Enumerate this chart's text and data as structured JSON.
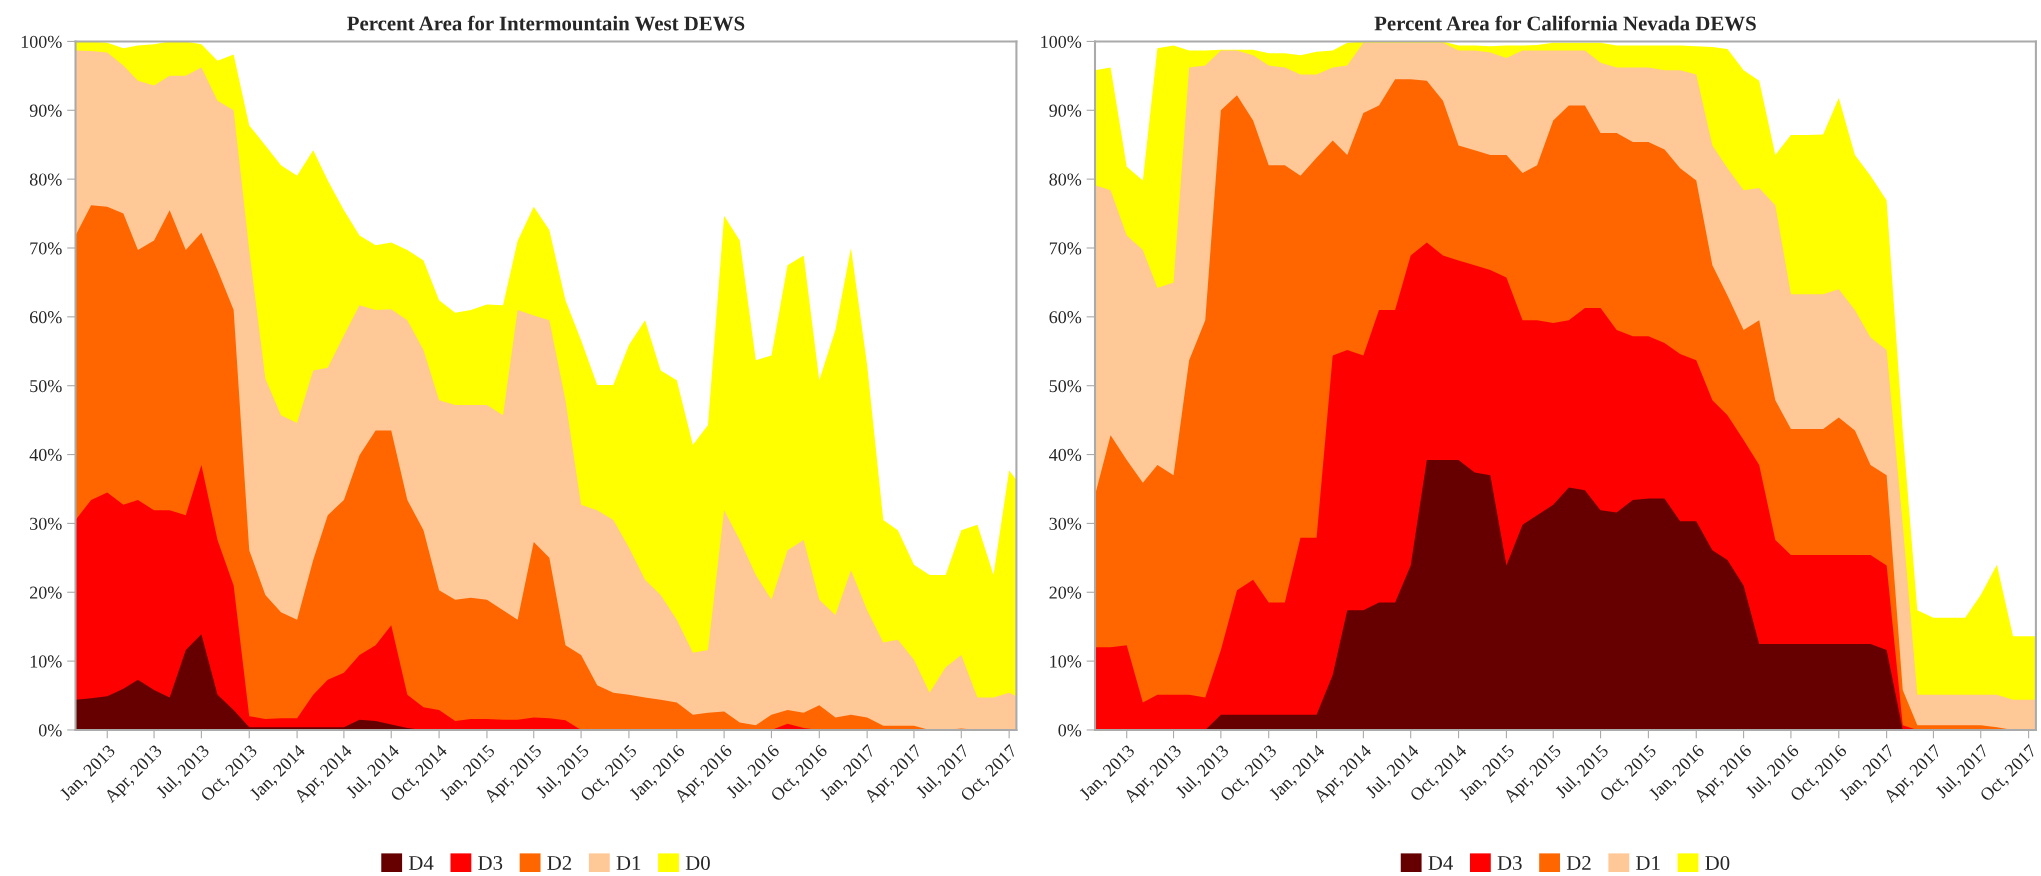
{
  "chart_data": [
    {
      "type": "area",
      "title": "Percent Area for Intermountain West DEWS",
      "x": [
        "2012-11",
        "2012-12",
        "2013-01",
        "2013-02",
        "2013-03",
        "2013-04",
        "2013-05",
        "2013-06",
        "2013-07",
        "2013-08",
        "2013-09",
        "2013-10",
        "2013-11",
        "2013-12",
        "2014-01",
        "2014-02",
        "2014-03",
        "2014-04",
        "2014-05",
        "2014-06",
        "2014-07",
        "2014-08",
        "2014-09",
        "2014-10",
        "2014-11",
        "2014-12",
        "2015-01",
        "2015-02",
        "2015-03",
        "2015-04",
        "2015-05",
        "2015-06",
        "2015-07",
        "2015-08",
        "2015-09",
        "2015-10",
        "2015-11",
        "2015-12",
        "2016-01",
        "2016-02",
        "2016-03",
        "2016-04",
        "2016-05",
        "2016-06",
        "2016-07",
        "2016-08",
        "2016-09",
        "2016-10",
        "2016-11",
        "2016-12",
        "2017-01",
        "2017-02",
        "2017-03",
        "2017-04",
        "2017-05",
        "2017-06",
        "2017-07",
        "2017-08",
        "2017-09",
        "2017-10",
        "2017-10-15"
      ],
      "series": [
        {
          "name": "D4",
          "color": "#660000",
          "values": [
            4.4,
            4.6,
            4.9,
            6,
            7.3,
            5.8,
            4.7,
            11.6,
            13.9,
            5.1,
            2.9,
            0.4,
            0.4,
            0.4,
            0.4,
            0.4,
            0.4,
            0.4,
            1.5,
            1.3,
            0.8,
            0.3,
            0,
            0,
            0,
            0,
            0,
            0,
            0,
            0,
            0,
            0,
            0,
            0,
            0,
            0,
            0,
            0,
            0,
            0,
            0,
            0,
            0,
            0,
            0,
            0,
            0,
            0,
            0,
            0,
            0,
            0,
            0,
            0,
            0,
            0,
            0,
            0,
            0,
            0,
            0
          ]
        },
        {
          "name": "D3",
          "color": "#ff0000",
          "values": [
            30.5,
            33.4,
            34.5,
            32.7,
            33.4,
            31.9,
            31.9,
            31.2,
            38.5,
            27.6,
            21,
            2,
            1.6,
            1.7,
            1.7,
            5.1,
            7.3,
            8.3,
            10.9,
            12.3,
            15.2,
            5.1,
            3.3,
            2.9,
            1.3,
            1.6,
            1.6,
            1.5,
            1.5,
            1.8,
            1.7,
            1.4,
            0,
            0,
            0,
            0,
            0,
            0,
            0,
            0,
            0,
            0,
            0,
            0,
            0,
            0.9,
            0.3,
            0,
            0,
            0,
            0,
            0,
            0,
            0,
            0,
            0,
            0,
            0,
            0,
            0,
            0
          ]
        },
        {
          "name": "D2",
          "color": "#ff6600",
          "values": [
            71.8,
            76.2,
            76,
            75,
            69.7,
            71.1,
            75.5,
            69.7,
            72.2,
            66.8,
            61,
            26.1,
            19.6,
            17.1,
            16,
            24.7,
            31.2,
            33.4,
            39.9,
            43.5,
            43.5,
            33.4,
            29,
            20.3,
            18.9,
            19.2,
            18.9,
            17.4,
            16,
            27.3,
            25,
            12.3,
            10.9,
            6.5,
            5.4,
            5.1,
            4.7,
            4.4,
            4,
            2.2,
            2.5,
            2.7,
            1.1,
            0.7,
            2.2,
            2.9,
            2.5,
            3.6,
            1.8,
            2.2,
            1.8,
            0.6,
            0.6,
            0.6,
            0,
            0,
            0.2,
            0,
            0,
            0,
            0
          ]
        },
        {
          "name": "D1",
          "color": "#ffc896",
          "values": [
            98.7,
            98.6,
            98.4,
            96.5,
            94.3,
            93.6,
            95,
            95,
            96.2,
            91.4,
            90,
            69.7,
            51,
            45.7,
            44.6,
            52.2,
            52.6,
            57.3,
            61.7,
            61,
            61.1,
            59.5,
            55.2,
            47.9,
            47.2,
            47.2,
            47.2,
            45.7,
            61,
            60.2,
            59.5,
            47.9,
            32.7,
            31.9,
            30.5,
            26.5,
            21.8,
            19.6,
            16,
            11.2,
            11.6,
            31.9,
            27.6,
            22.5,
            18.9,
            26.1,
            27.6,
            18.9,
            16.7,
            23.2,
            17.4,
            12.7,
            13.1,
            10.2,
            5.4,
            9.1,
            10.9,
            4.7,
            4.7,
            5.4,
            4.9
          ]
        },
        {
          "name": "D0",
          "color": "#ffff00",
          "values": [
            100,
            100,
            99.8,
            99,
            99.4,
            99.6,
            100,
            100,
            99.6,
            97.2,
            98.1,
            87.8,
            84.9,
            82,
            80.5,
            84.2,
            79.8,
            75.5,
            71.8,
            70.4,
            70.8,
            69.7,
            68.2,
            62.4,
            60.6,
            61,
            61.8,
            61.7,
            71,
            76,
            72.6,
            62.4,
            56.6,
            50.1,
            50.1,
            55.9,
            59.5,
            52.2,
            50.8,
            41.4,
            44.3,
            74.7,
            71.1,
            53.7,
            54.4,
            67.5,
            68.9,
            50.8,
            58.1,
            70,
            53,
            30.5,
            29,
            24,
            22.5,
            22.5,
            29,
            29.8,
            22.5,
            37.7,
            36.3
          ]
        }
      ],
      "xlim": [
        "2012-11-01",
        "2017-10-15"
      ],
      "xticks": [
        {
          "value": "2013-01-01",
          "label": "Jan, 2013"
        },
        {
          "value": "2013-04-01",
          "label": "Apr, 2013"
        },
        {
          "value": "2013-07-01",
          "label": "Jul, 2013"
        },
        {
          "value": "2013-10-01",
          "label": "Oct, 2013"
        },
        {
          "value": "2014-01-01",
          "label": "Jan, 2014"
        },
        {
          "value": "2014-04-01",
          "label": "Apr, 2014"
        },
        {
          "value": "2014-07-01",
          "label": "Jul, 2014"
        },
        {
          "value": "2014-10-01",
          "label": "Oct, 2014"
        },
        {
          "value": "2015-01-01",
          "label": "Jan, 2015"
        },
        {
          "value": "2015-04-01",
          "label": "Apr, 2015"
        },
        {
          "value": "2015-07-01",
          "label": "Jul, 2015"
        },
        {
          "value": "2015-10-01",
          "label": "Oct, 2015"
        },
        {
          "value": "2016-01-01",
          "label": "Jan, 2016"
        },
        {
          "value": "2016-04-01",
          "label": "Apr, 2016"
        },
        {
          "value": "2016-07-01",
          "label": "Jul, 2016"
        },
        {
          "value": "2016-10-01",
          "label": "Oct, 2016"
        },
        {
          "value": "2017-01-01",
          "label": "Jan, 2017"
        },
        {
          "value": "2017-04-01",
          "label": "Apr, 2017"
        },
        {
          "value": "2017-07-01",
          "label": "Jul, 2017"
        },
        {
          "value": "2017-10-01",
          "label": "Oct, 2017"
        }
      ],
      "ylim": [
        0,
        100
      ],
      "yticks": [
        {
          "value": 0,
          "label": "0%"
        },
        {
          "value": 10,
          "label": "10%"
        },
        {
          "value": 20,
          "label": "20%"
        },
        {
          "value": 30,
          "label": "30%"
        },
        {
          "value": 40,
          "label": "40%"
        },
        {
          "value": 50,
          "label": "50%"
        },
        {
          "value": 60,
          "label": "60%"
        },
        {
          "value": 70,
          "label": "70%"
        },
        {
          "value": 80,
          "label": "80%"
        },
        {
          "value": 90,
          "label": "90%"
        },
        {
          "value": 100,
          "label": "100%"
        }
      ],
      "legend": "bottom"
    },
    {
      "type": "area",
      "title": "Percent Area for California Nevada DEWS",
      "x": [
        "2012-11",
        "2012-12",
        "2013-01",
        "2013-02",
        "2013-03",
        "2013-04",
        "2013-05",
        "2013-06",
        "2013-07",
        "2013-08",
        "2013-09",
        "2013-10",
        "2013-11",
        "2013-12",
        "2014-01",
        "2014-02",
        "2014-03",
        "2014-04",
        "2014-05",
        "2014-06",
        "2014-07",
        "2014-08",
        "2014-09",
        "2014-10",
        "2014-11",
        "2014-12",
        "2015-01",
        "2015-02",
        "2015-03",
        "2015-04",
        "2015-05",
        "2015-06",
        "2015-07",
        "2015-08",
        "2015-09",
        "2015-10",
        "2015-11",
        "2015-12",
        "2016-01",
        "2016-02",
        "2016-03",
        "2016-04",
        "2016-05",
        "2016-06",
        "2016-07",
        "2016-08",
        "2016-09",
        "2016-10",
        "2016-11",
        "2016-12",
        "2017-01",
        "2017-02",
        "2017-03",
        "2017-04",
        "2017-05",
        "2017-06",
        "2017-07",
        "2017-08",
        "2017-09",
        "2017-10",
        "2017-10-15"
      ],
      "series": [
        {
          "name": "D4",
          "color": "#660000",
          "values": [
            0,
            0,
            0,
            0,
            0,
            0,
            0,
            0,
            2.2,
            2.2,
            2.2,
            2.2,
            2.2,
            2.2,
            2.2,
            8,
            17.4,
            17.4,
            18.5,
            18.5,
            23.9,
            39.2,
            39.2,
            39.2,
            37.4,
            37,
            23.9,
            29.8,
            31.2,
            32.7,
            35.2,
            34.8,
            31.9,
            31.6,
            33.4,
            33.6,
            33.6,
            30.3,
            30.3,
            26.1,
            24.7,
            21,
            12.5,
            12.5,
            12.5,
            12.5,
            12.5,
            12.5,
            12.5,
            12.5,
            11.6,
            0,
            0,
            0,
            0,
            0,
            0,
            0,
            0,
            0,
            0
          ]
        },
        {
          "name": "D3",
          "color": "#ff0000",
          "values": [
            12,
            12,
            12.3,
            4,
            5.1,
            5.1,
            5.1,
            4.7,
            11.6,
            20.3,
            21.8,
            18.5,
            18.5,
            27.9,
            27.9,
            54.4,
            55.2,
            54.4,
            61,
            61,
            68.9,
            70.8,
            68.9,
            68.2,
            67.5,
            66.8,
            65.7,
            59.5,
            59.5,
            59.1,
            59.5,
            61.3,
            61.3,
            58.1,
            57.2,
            57.2,
            56.2,
            54.6,
            53.7,
            47.9,
            45.7,
            42.1,
            38.5,
            27.6,
            25.4,
            25.4,
            25.4,
            25.4,
            25.4,
            25.4,
            23.9,
            0.7,
            0,
            0,
            0,
            0,
            0,
            0,
            0,
            0,
            0
          ]
        },
        {
          "name": "D2",
          "color": "#ff6600",
          "values": [
            34.1,
            42.8,
            39.2,
            35.9,
            38.5,
            37,
            53.7,
            59.5,
            90,
            92.2,
            88.5,
            82,
            82,
            80.5,
            83.1,
            85.6,
            83.5,
            89.6,
            90.7,
            94.5,
            94.5,
            94.3,
            91.4,
            84.9,
            84.2,
            83.5,
            83.5,
            80.9,
            82,
            88.5,
            90.7,
            90.7,
            86.7,
            86.7,
            85.4,
            85.4,
            84.3,
            81.6,
            79.8,
            67.5,
            63.1,
            58.1,
            59.5,
            47.9,
            43.7,
            43.7,
            43.7,
            45.4,
            43.5,
            38.5,
            37,
            5.8,
            0.7,
            0.7,
            0.7,
            0.7,
            0.7,
            0.4,
            0,
            0,
            0
          ]
        },
        {
          "name": "D1",
          "color": "#ffc896",
          "values": [
            79.1,
            78.4,
            71.8,
            69.7,
            64.2,
            65,
            96.2,
            96.5,
            98.7,
            98.7,
            98,
            96.5,
            96.2,
            95.2,
            95.2,
            96.2,
            96.5,
            99.8,
            99.8,
            99.8,
            99.8,
            99.8,
            99.8,
            98.7,
            98.7,
            98.4,
            97.6,
            98.7,
            98.7,
            98.7,
            98.7,
            98.7,
            96.9,
            96.2,
            96.2,
            96.2,
            95.8,
            95.8,
            95.2,
            84.9,
            81.6,
            78.4,
            78.7,
            76.2,
            63.3,
            63.3,
            63.3,
            64,
            61,
            57,
            55.2,
            29.8,
            5.1,
            5.1,
            5.1,
            5.1,
            5.1,
            5.1,
            4.4,
            4.4,
            4.4
          ]
        },
        {
          "name": "D0",
          "color": "#ffff00",
          "values": [
            95.8,
            96.2,
            81.8,
            79.8,
            99,
            99.4,
            98.7,
            98.7,
            98.8,
            98.8,
            98.8,
            98.3,
            98.3,
            98,
            98.5,
            98.7,
            99.8,
            100,
            100,
            100,
            100,
            100,
            100,
            99.4,
            99.4,
            99.3,
            99.4,
            99.4,
            99.5,
            99.8,
            99.8,
            99.8,
            99.8,
            99.4,
            99.4,
            99.4,
            99.4,
            99.4,
            99.3,
            99.2,
            98.9,
            95.8,
            94.3,
            83.5,
            86.4,
            86.4,
            86.5,
            91.8,
            83.5,
            80.5,
            76.9,
            43.5,
            17.4,
            16.3,
            16.3,
            16.3,
            19.6,
            24,
            13.6,
            13.6,
            13.6
          ]
        }
      ],
      "xlim": [
        "2012-11-01",
        "2017-10-15"
      ],
      "xticks": [
        {
          "value": "2013-01-01",
          "label": "Jan, 2013"
        },
        {
          "value": "2013-04-01",
          "label": "Apr, 2013"
        },
        {
          "value": "2013-07-01",
          "label": "Jul, 2013"
        },
        {
          "value": "2013-10-01",
          "label": "Oct, 2013"
        },
        {
          "value": "2014-01-01",
          "label": "Jan, 2014"
        },
        {
          "value": "2014-04-01",
          "label": "Apr, 2014"
        },
        {
          "value": "2014-07-01",
          "label": "Jul, 2014"
        },
        {
          "value": "2014-10-01",
          "label": "Oct, 2014"
        },
        {
          "value": "2015-01-01",
          "label": "Jan, 2015"
        },
        {
          "value": "2015-04-01",
          "label": "Apr, 2015"
        },
        {
          "value": "2015-07-01",
          "label": "Jul, 2015"
        },
        {
          "value": "2015-10-01",
          "label": "Oct, 2015"
        },
        {
          "value": "2016-01-01",
          "label": "Jan, 2016"
        },
        {
          "value": "2016-04-01",
          "label": "Apr, 2016"
        },
        {
          "value": "2016-07-01",
          "label": "Jul, 2016"
        },
        {
          "value": "2016-10-01",
          "label": "Oct, 2016"
        },
        {
          "value": "2017-01-01",
          "label": "Jan, 2017"
        },
        {
          "value": "2017-04-01",
          "label": "Apr, 2017"
        },
        {
          "value": "2017-07-01",
          "label": "Jul, 2017"
        },
        {
          "value": "2017-10-01",
          "label": "Oct, 2017"
        }
      ],
      "ylim": [
        0,
        100
      ],
      "yticks": [
        {
          "value": 0,
          "label": "0%"
        },
        {
          "value": 10,
          "label": "10%"
        },
        {
          "value": 20,
          "label": "20%"
        },
        {
          "value": 30,
          "label": "30%"
        },
        {
          "value": 40,
          "label": "40%"
        },
        {
          "value": 50,
          "label": "50%"
        },
        {
          "value": 60,
          "label": "60%"
        },
        {
          "value": 70,
          "label": "70%"
        },
        {
          "value": 80,
          "label": "80%"
        },
        {
          "value": 90,
          "label": "90%"
        },
        {
          "value": 100,
          "label": "100%"
        }
      ],
      "legend": "bottom"
    }
  ]
}
